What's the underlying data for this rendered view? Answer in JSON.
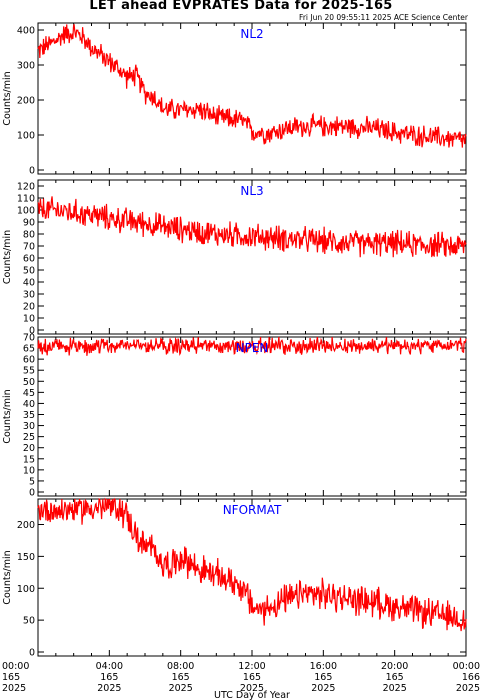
{
  "title": "LET ahead EVPRATES Data for 2025-165",
  "stamp": "Fri Jun 20 09:55:11 2025 ACE Science Center",
  "xlabel": "UTC Day of Year",
  "line_color": "#ff0000",
  "label_color": "#0000ff",
  "x_ticks": [
    {
      "time": "00:00",
      "doy": "165",
      "year": "2025"
    },
    {
      "time": "04:00",
      "doy": "165",
      "year": "2025"
    },
    {
      "time": "08:00",
      "doy": "165",
      "year": "2025"
    },
    {
      "time": "12:00",
      "doy": "165",
      "year": "2025"
    },
    {
      "time": "16:00",
      "doy": "165",
      "year": "2025"
    },
    {
      "time": "20:00",
      "doy": "165",
      "year": "2025"
    },
    {
      "time": "00:00",
      "doy": "166",
      "year": "2025"
    }
  ],
  "chart_data": [
    {
      "type": "line",
      "series_label": "NL2",
      "ylabel": "Counts/min",
      "ylim": [
        0,
        420
      ],
      "yticks": [
        0,
        100,
        200,
        300,
        400
      ],
      "x_hours": [
        0,
        1,
        1.5,
        2,
        2.5,
        3,
        3.5,
        4,
        4.5,
        5,
        5.5,
        6,
        6.5,
        7,
        8,
        9,
        10,
        11,
        11.5,
        12,
        13,
        14,
        15,
        16,
        17,
        18,
        19,
        20,
        21,
        22,
        23,
        24
      ],
      "y": [
        340,
        370,
        390,
        395,
        380,
        350,
        330,
        310,
        290,
        265,
        270,
        220,
        210,
        175,
        170,
        175,
        150,
        145,
        140,
        110,
        105,
        120,
        125,
        125,
        125,
        122,
        118,
        108,
        100,
        95,
        90,
        85
      ]
    },
    {
      "type": "line",
      "series_label": "NL3",
      "ylabel": "Counts/min",
      "ylim": [
        0,
        125
      ],
      "yticks": [
        0,
        10,
        20,
        30,
        40,
        50,
        60,
        70,
        80,
        90,
        100,
        110,
        120
      ],
      "x_hours": [
        0,
        1,
        2,
        3,
        4,
        5,
        6,
        7,
        8,
        9,
        10,
        11,
        12,
        13,
        14,
        15,
        16,
        17,
        18,
        19,
        20,
        21,
        22,
        23,
        24
      ],
      "y": [
        100,
        100,
        98,
        96,
        93,
        91,
        89,
        86,
        84,
        82,
        80,
        79,
        78,
        77,
        76,
        75,
        74,
        73,
        72,
        72,
        72,
        71,
        71,
        70,
        70
      ]
    },
    {
      "type": "line",
      "series_label": "NPEN",
      "ylabel": "Counts/min",
      "ylim": [
        0,
        70
      ],
      "yticks": [
        0,
        5,
        10,
        15,
        20,
        25,
        30,
        35,
        40,
        45,
        50,
        55,
        60,
        65,
        70
      ],
      "x_hours": [
        0,
        2,
        4,
        6,
        8,
        10,
        12,
        14,
        16,
        18,
        20,
        22,
        24
      ],
      "y": [
        66,
        66,
        66,
        66,
        66,
        66,
        66,
        66,
        66,
        66,
        66,
        66,
        66
      ]
    },
    {
      "type": "line",
      "series_label": "NFORMAT",
      "ylabel": "Counts/min",
      "ylim": [
        0,
        240
      ],
      "yticks": [
        0,
        50,
        100,
        150,
        200
      ],
      "x_hours": [
        0,
        1,
        2,
        3,
        4,
        4.5,
        5,
        5.5,
        6,
        6.5,
        7,
        7.5,
        8,
        8.5,
        9,
        9.5,
        10,
        11,
        11.5,
        12,
        12.5,
        13,
        14,
        15,
        16,
        17,
        18,
        19,
        20,
        21,
        22,
        23,
        24
      ],
      "y": [
        225,
        222,
        225,
        226,
        228,
        225,
        215,
        180,
        165,
        160,
        140,
        135,
        150,
        140,
        130,
        125,
        120,
        110,
        100,
        72,
        65,
        70,
        82,
        92,
        90,
        85,
        82,
        78,
        72,
        65,
        60,
        55,
        50
      ]
    }
  ]
}
